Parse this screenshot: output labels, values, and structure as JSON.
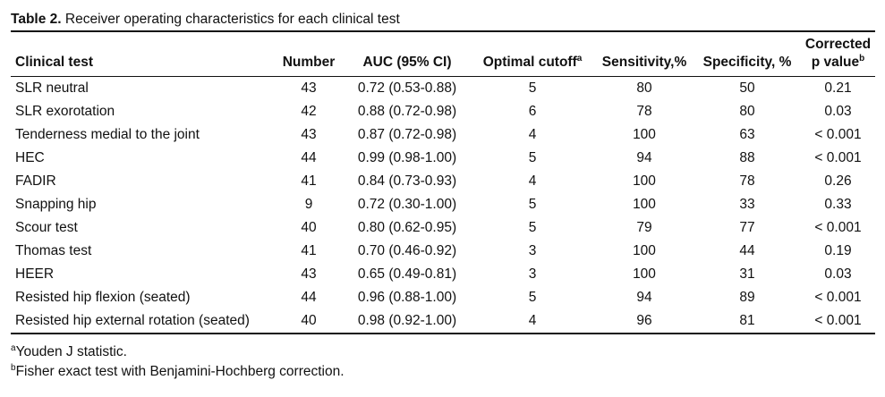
{
  "caption": {
    "label": "Table 2.",
    "text": " Receiver operating characteristics for each clinical test"
  },
  "table": {
    "headers": {
      "clinical_test": "Clinical test",
      "number": "Number",
      "auc": "AUC (95% CI)",
      "optimal_cutoff": "Optimal cutoff",
      "optimal_cutoff_mark": "a",
      "sensitivity": "Sensitivity,%",
      "specificity": "Specificity, %",
      "corrected_line1": "Corrected",
      "corrected_line2": "p value",
      "corrected_mark": "b"
    },
    "rows": [
      {
        "test": "SLR neutral",
        "number": "43",
        "auc": "0.72 (0.53-0.88)",
        "cutoff": "5",
        "sensitivity": "80",
        "specificity": "50",
        "p": "0.21"
      },
      {
        "test": "SLR exorotation",
        "number": "42",
        "auc": "0.88 (0.72-0.98)",
        "cutoff": "6",
        "sensitivity": "78",
        "specificity": "80",
        "p": "0.03"
      },
      {
        "test": "Tenderness medial to the joint",
        "number": "43",
        "auc": "0.87 (0.72-0.98)",
        "cutoff": "4",
        "sensitivity": "100",
        "specificity": "63",
        "p": "< 0.001"
      },
      {
        "test": "HEC",
        "number": "44",
        "auc": "0.99 (0.98-1.00)",
        "cutoff": "5",
        "sensitivity": "94",
        "specificity": "88",
        "p": "< 0.001"
      },
      {
        "test": "FADIR",
        "number": "41",
        "auc": "0.84 (0.73-0.93)",
        "cutoff": "4",
        "sensitivity": "100",
        "specificity": "78",
        "p": "0.26"
      },
      {
        "test": "Snapping hip",
        "number": "9",
        "auc": "0.72 (0.30-1.00)",
        "cutoff": "5",
        "sensitivity": "100",
        "specificity": "33",
        "p": "0.33"
      },
      {
        "test": "Scour test",
        "number": "40",
        "auc": "0.80 (0.62-0.95)",
        "cutoff": "5",
        "sensitivity": "79",
        "specificity": "77",
        "p": "< 0.001"
      },
      {
        "test": "Thomas test",
        "number": "41",
        "auc": "0.70 (0.46-0.92)",
        "cutoff": "3",
        "sensitivity": "100",
        "specificity": "44",
        "p": "0.19"
      },
      {
        "test": "HEER",
        "number": "43",
        "auc": "0.65 (0.49-0.81)",
        "cutoff": "3",
        "sensitivity": "100",
        "specificity": "31",
        "p": "0.03"
      },
      {
        "test": "Resisted hip flexion (seated)",
        "number": "44",
        "auc": "0.96 (0.88-1.00)",
        "cutoff": "5",
        "sensitivity": "94",
        "specificity": "89",
        "p": "< 0.001"
      },
      {
        "test": "Resisted hip external rotation (seated)",
        "number": "40",
        "auc": "0.98 (0.92-1.00)",
        "cutoff": "4",
        "sensitivity": "96",
        "specificity": "81",
        "p": "< 0.001"
      }
    ]
  },
  "footnotes": [
    {
      "mark": "a",
      "text": "Youden J statistic."
    },
    {
      "mark": "b",
      "text": "Fisher exact test with Benjamini-Hochberg correction."
    }
  ]
}
